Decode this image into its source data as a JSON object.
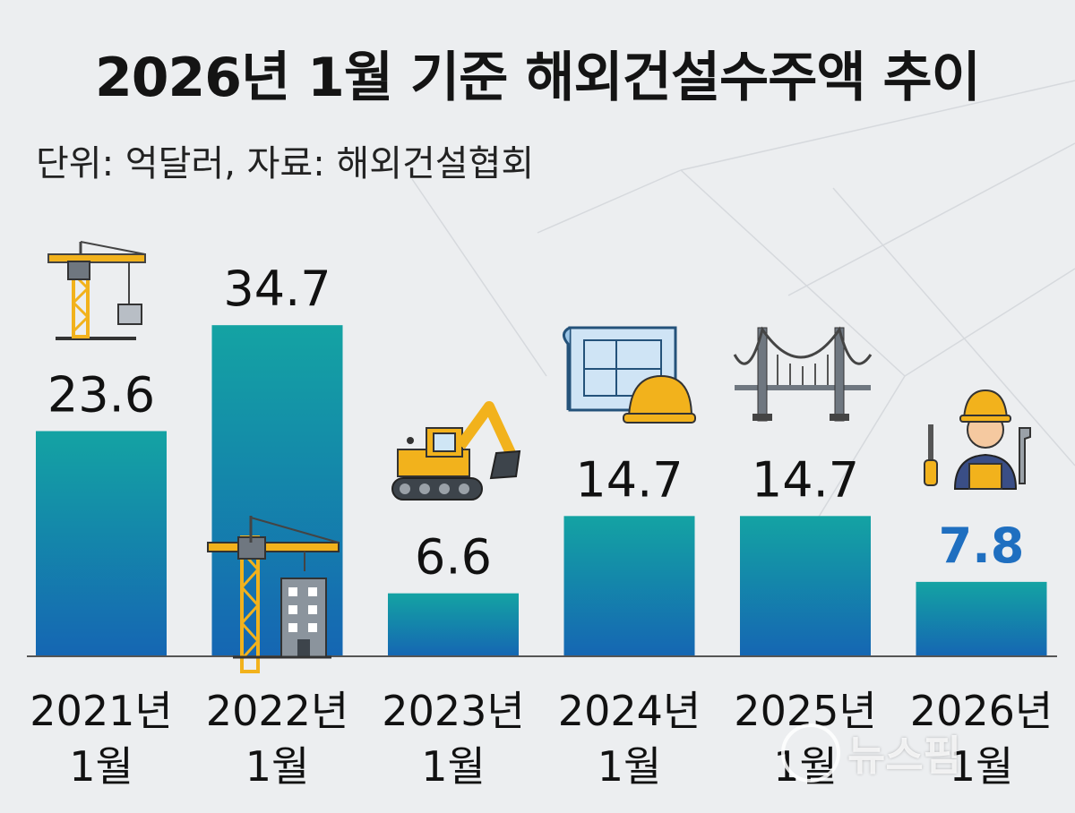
{
  "title": "2026년 1월 기준 해외건설수주액 추이",
  "subtitle": "단위: 억달러, 자료: 해외건설협회",
  "watermark": "뉴스핌",
  "colors": {
    "bar_top": "#14a3a3",
    "bar_bottom": "#1566b3",
    "highlight_label": "#1f6fc0",
    "label": "#111111"
  },
  "icons": [
    "crane-icon",
    "crane-building-icon",
    "excavator-icon",
    "blueprint-helmet-icon",
    "bridge-icon",
    "worker-icon"
  ],
  "chart_data": {
    "type": "bar",
    "title": "2026년 1월 기준 해외건설수주액 추이",
    "xlabel": "",
    "ylabel": "",
    "categories": [
      "2021년 1월",
      "2022년 1월",
      "2023년 1월",
      "2024년 1월",
      "2025년 1월",
      "2026년 1월"
    ],
    "category_lines": [
      [
        "2021년",
        "1월"
      ],
      [
        "2022년",
        "1월"
      ],
      [
        "2023년",
        "1월"
      ],
      [
        "2024년",
        "1월"
      ],
      [
        "2025년",
        "1월"
      ],
      [
        "2026년",
        "1월"
      ]
    ],
    "values": [
      23.6,
      34.7,
      6.6,
      14.7,
      14.7,
      7.8
    ],
    "value_labels": [
      "23.6",
      "34.7",
      "6.6",
      "14.7",
      "14.7",
      "7.8"
    ],
    "highlight_index": 5,
    "ylim": [
      0,
      38
    ],
    "grid": false,
    "legend": "none"
  }
}
